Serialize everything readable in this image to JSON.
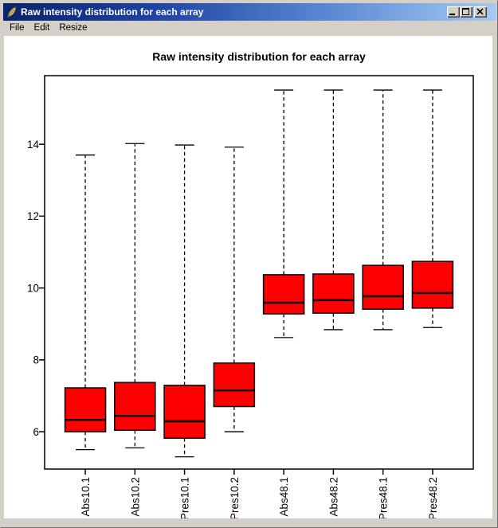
{
  "window": {
    "title": "Raw intensity distribution for each array"
  },
  "menu": {
    "items": [
      "File",
      "Edit",
      "Resize"
    ]
  },
  "chart_data": {
    "type": "boxplot",
    "title": "Raw intensity distribution for each array",
    "categories": [
      "Abs10.1",
      "Abs10.2",
      "Pres10.1",
      "Pres10.2",
      "Abs48.1",
      "Abs48.2",
      "Pres48.1",
      "Pres48.2"
    ],
    "series": [
      {
        "name": "Abs10.1",
        "whislo": 5.5,
        "q1": 6.0,
        "med": 6.33,
        "q3": 7.22,
        "whishi": 13.7
      },
      {
        "name": "Abs10.2",
        "whislo": 5.55,
        "q1": 6.04,
        "med": 6.44,
        "q3": 7.37,
        "whishi": 14.02
      },
      {
        "name": "Pres10.1",
        "whislo": 5.3,
        "q1": 5.82,
        "med": 6.29,
        "q3": 7.29,
        "whishi": 13.98
      },
      {
        "name": "Pres10.2",
        "whislo": 6.0,
        "q1": 6.7,
        "med": 7.15,
        "q3": 7.91,
        "whishi": 13.92
      },
      {
        "name": "Abs48.1",
        "whislo": 8.62,
        "q1": 9.28,
        "med": 9.59,
        "q3": 10.37,
        "whishi": 15.51
      },
      {
        "name": "Abs48.2",
        "whislo": 8.84,
        "q1": 9.3,
        "med": 9.66,
        "q3": 10.39,
        "whishi": 15.51
      },
      {
        "name": "Pres48.1",
        "whislo": 8.84,
        "q1": 9.41,
        "med": 9.77,
        "q3": 10.63,
        "whishi": 15.51
      },
      {
        "name": "Pres48.2",
        "whislo": 8.9,
        "q1": 9.44,
        "med": 9.86,
        "q3": 10.74,
        "whishi": 15.51
      }
    ],
    "yticks": [
      6,
      8,
      10,
      12,
      14
    ],
    "ylim": [
      4.96,
      15.91
    ],
    "grid": false,
    "box_fill": "#ff0000",
    "line_color": "#000000"
  }
}
